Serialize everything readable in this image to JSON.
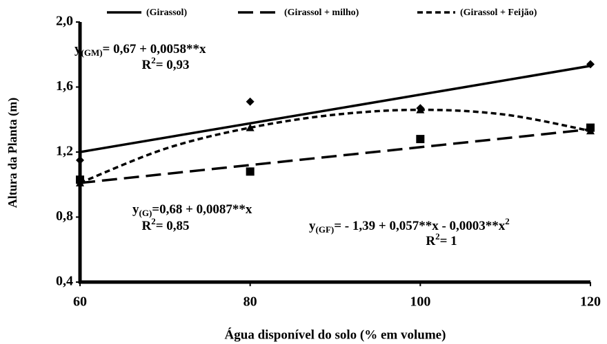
{
  "chart_data": {
    "type": "scatter",
    "xlabel": "Água disponível do solo (% em volume)",
    "ylabel": "Altura da Planta (m)",
    "x": [
      60,
      80,
      100,
      120
    ],
    "xlim": [
      60,
      120
    ],
    "xticks": [
      60,
      80,
      100,
      120
    ],
    "ylim": [
      0.4,
      2.0
    ],
    "yticks": [
      {
        "value": 0.4,
        "label": "0,4"
      },
      {
        "value": 0.8,
        "label": "0,8"
      },
      {
        "value": 1.2,
        "label": "1,2"
      },
      {
        "value": 1.6,
        "label": "1,6"
      },
      {
        "value": 2.0,
        "label": "2,0"
      }
    ],
    "legend": "top",
    "series": [
      {
        "name": "(Girassol)",
        "color": "#000000",
        "marker": "diamond",
        "dash": "solid",
        "values": [
          1.15,
          1.51,
          1.47,
          1.74
        ],
        "fit_x": [
          60,
          120
        ],
        "fit_values": [
          1.2,
          1.73
        ]
      },
      {
        "name": "(Girassol + milho)",
        "color": "#000000",
        "marker": "square",
        "dash": "long",
        "values": [
          1.03,
          1.08,
          1.28,
          1.35
        ],
        "fit_x": [
          60,
          120
        ],
        "fit_values": [
          1.01,
          1.34
        ]
      },
      {
        "name": "(Girassol + Feijão)",
        "color": "#000000",
        "marker": "triangle",
        "dash": "short",
        "values": [
          1.01,
          1.35,
          1.46,
          1.33
        ],
        "fit_x": [
          60,
          70,
          80,
          90,
          100,
          110,
          120
        ],
        "fit_values": [
          1.01,
          1.22,
          1.35,
          1.43,
          1.46,
          1.43,
          1.33
        ]
      }
    ],
    "annotations": [
      [
        [
          {
            "text": "y"
          },
          {
            "text": "(GM)",
            "sub": true
          },
          {
            "text": "= 0,67 + 0,0058**x"
          }
        ],
        [
          {
            "text": "R"
          },
          {
            "text": "2",
            "sup": true
          },
          {
            "text": "= 0,93"
          }
        ]
      ],
      [
        [
          {
            "text": "y"
          },
          {
            "text": "(G)",
            "sub": true
          },
          {
            "text": "=0,68 + 0,0087**x"
          }
        ],
        [
          {
            "text": "R"
          },
          {
            "text": "2",
            "sup": true
          },
          {
            "text": "= 0,85"
          }
        ]
      ],
      [
        [
          {
            "text": "y"
          },
          {
            "text": "(GF)",
            "sub": true
          },
          {
            "text": "= - 1,39 + 0,057**x - 0,0003**x"
          },
          {
            "text": "2",
            "sup": true
          }
        ],
        [
          {
            "text": "R"
          },
          {
            "text": "2",
            "sup": true
          },
          {
            "text": "= 1"
          }
        ]
      ]
    ]
  }
}
